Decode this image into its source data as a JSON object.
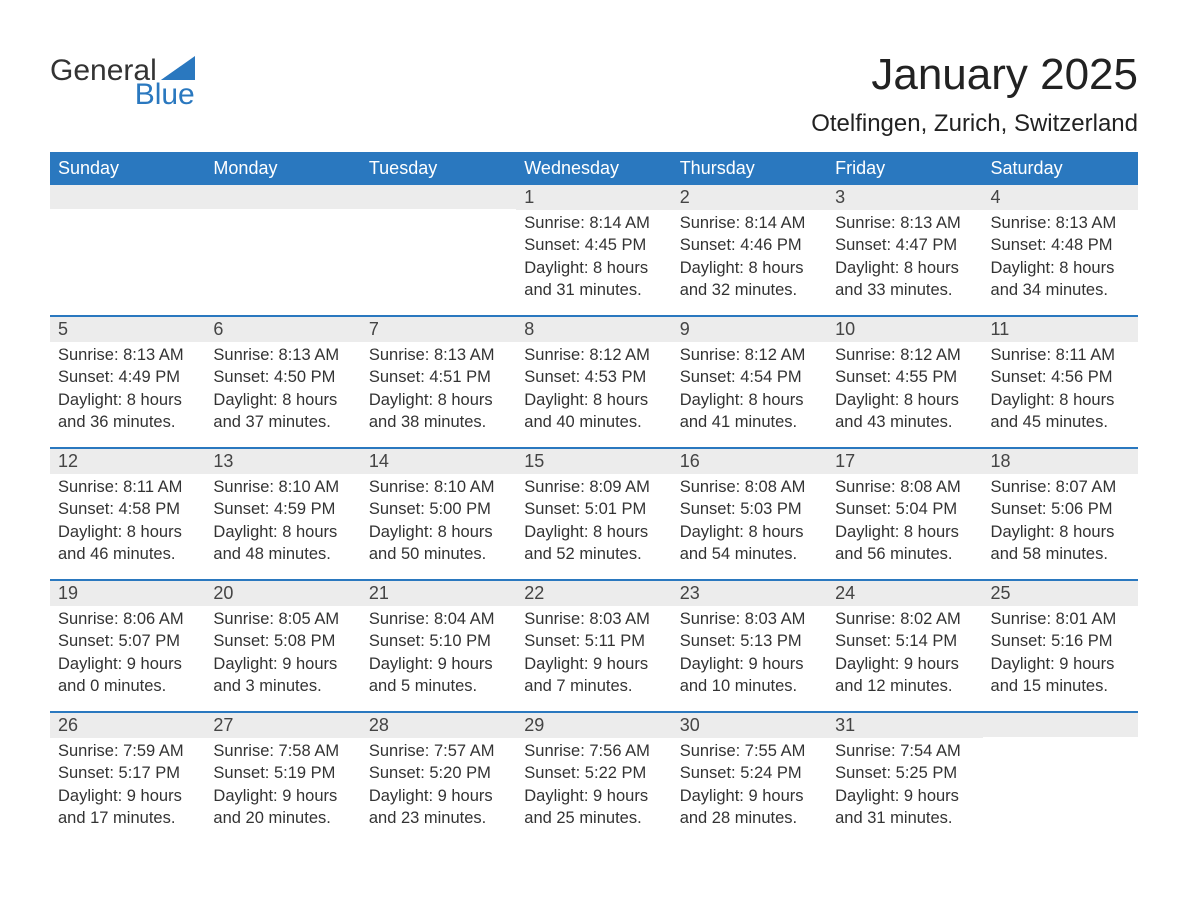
{
  "logo": {
    "general": "General",
    "blue": "Blue",
    "shape_color": "#2a78bf"
  },
  "title": "January 2025",
  "location": "Otelfingen, Zurich, Switzerland",
  "colors": {
    "header_bg": "#2a78bf",
    "header_text": "#ffffff",
    "date_row_bg": "#ececec",
    "week_border": "#2a78bf",
    "body_text": "#333333",
    "background": "#ffffff"
  },
  "day_names": [
    "Sunday",
    "Monday",
    "Tuesday",
    "Wednesday",
    "Thursday",
    "Friday",
    "Saturday"
  ],
  "weeks": [
    [
      {
        "date": "",
        "sunrise": "",
        "sunset": "",
        "daylight1": "",
        "daylight2": ""
      },
      {
        "date": "",
        "sunrise": "",
        "sunset": "",
        "daylight1": "",
        "daylight2": ""
      },
      {
        "date": "",
        "sunrise": "",
        "sunset": "",
        "daylight1": "",
        "daylight2": ""
      },
      {
        "date": "1",
        "sunrise": "Sunrise: 8:14 AM",
        "sunset": "Sunset: 4:45 PM",
        "daylight1": "Daylight: 8 hours",
        "daylight2": "and 31 minutes."
      },
      {
        "date": "2",
        "sunrise": "Sunrise: 8:14 AM",
        "sunset": "Sunset: 4:46 PM",
        "daylight1": "Daylight: 8 hours",
        "daylight2": "and 32 minutes."
      },
      {
        "date": "3",
        "sunrise": "Sunrise: 8:13 AM",
        "sunset": "Sunset: 4:47 PM",
        "daylight1": "Daylight: 8 hours",
        "daylight2": "and 33 minutes."
      },
      {
        "date": "4",
        "sunrise": "Sunrise: 8:13 AM",
        "sunset": "Sunset: 4:48 PM",
        "daylight1": "Daylight: 8 hours",
        "daylight2": "and 34 minutes."
      }
    ],
    [
      {
        "date": "5",
        "sunrise": "Sunrise: 8:13 AM",
        "sunset": "Sunset: 4:49 PM",
        "daylight1": "Daylight: 8 hours",
        "daylight2": "and 36 minutes."
      },
      {
        "date": "6",
        "sunrise": "Sunrise: 8:13 AM",
        "sunset": "Sunset: 4:50 PM",
        "daylight1": "Daylight: 8 hours",
        "daylight2": "and 37 minutes."
      },
      {
        "date": "7",
        "sunrise": "Sunrise: 8:13 AM",
        "sunset": "Sunset: 4:51 PM",
        "daylight1": "Daylight: 8 hours",
        "daylight2": "and 38 minutes."
      },
      {
        "date": "8",
        "sunrise": "Sunrise: 8:12 AM",
        "sunset": "Sunset: 4:53 PM",
        "daylight1": "Daylight: 8 hours",
        "daylight2": "and 40 minutes."
      },
      {
        "date": "9",
        "sunrise": "Sunrise: 8:12 AM",
        "sunset": "Sunset: 4:54 PM",
        "daylight1": "Daylight: 8 hours",
        "daylight2": "and 41 minutes."
      },
      {
        "date": "10",
        "sunrise": "Sunrise: 8:12 AM",
        "sunset": "Sunset: 4:55 PM",
        "daylight1": "Daylight: 8 hours",
        "daylight2": "and 43 minutes."
      },
      {
        "date": "11",
        "sunrise": "Sunrise: 8:11 AM",
        "sunset": "Sunset: 4:56 PM",
        "daylight1": "Daylight: 8 hours",
        "daylight2": "and 45 minutes."
      }
    ],
    [
      {
        "date": "12",
        "sunrise": "Sunrise: 8:11 AM",
        "sunset": "Sunset: 4:58 PM",
        "daylight1": "Daylight: 8 hours",
        "daylight2": "and 46 minutes."
      },
      {
        "date": "13",
        "sunrise": "Sunrise: 8:10 AM",
        "sunset": "Sunset: 4:59 PM",
        "daylight1": "Daylight: 8 hours",
        "daylight2": "and 48 minutes."
      },
      {
        "date": "14",
        "sunrise": "Sunrise: 8:10 AM",
        "sunset": "Sunset: 5:00 PM",
        "daylight1": "Daylight: 8 hours",
        "daylight2": "and 50 minutes."
      },
      {
        "date": "15",
        "sunrise": "Sunrise: 8:09 AM",
        "sunset": "Sunset: 5:01 PM",
        "daylight1": "Daylight: 8 hours",
        "daylight2": "and 52 minutes."
      },
      {
        "date": "16",
        "sunrise": "Sunrise: 8:08 AM",
        "sunset": "Sunset: 5:03 PM",
        "daylight1": "Daylight: 8 hours",
        "daylight2": "and 54 minutes."
      },
      {
        "date": "17",
        "sunrise": "Sunrise: 8:08 AM",
        "sunset": "Sunset: 5:04 PM",
        "daylight1": "Daylight: 8 hours",
        "daylight2": "and 56 minutes."
      },
      {
        "date": "18",
        "sunrise": "Sunrise: 8:07 AM",
        "sunset": "Sunset: 5:06 PM",
        "daylight1": "Daylight: 8 hours",
        "daylight2": "and 58 minutes."
      }
    ],
    [
      {
        "date": "19",
        "sunrise": "Sunrise: 8:06 AM",
        "sunset": "Sunset: 5:07 PM",
        "daylight1": "Daylight: 9 hours",
        "daylight2": "and 0 minutes."
      },
      {
        "date": "20",
        "sunrise": "Sunrise: 8:05 AM",
        "sunset": "Sunset: 5:08 PM",
        "daylight1": "Daylight: 9 hours",
        "daylight2": "and 3 minutes."
      },
      {
        "date": "21",
        "sunrise": "Sunrise: 8:04 AM",
        "sunset": "Sunset: 5:10 PM",
        "daylight1": "Daylight: 9 hours",
        "daylight2": "and 5 minutes."
      },
      {
        "date": "22",
        "sunrise": "Sunrise: 8:03 AM",
        "sunset": "Sunset: 5:11 PM",
        "daylight1": "Daylight: 9 hours",
        "daylight2": "and 7 minutes."
      },
      {
        "date": "23",
        "sunrise": "Sunrise: 8:03 AM",
        "sunset": "Sunset: 5:13 PM",
        "daylight1": "Daylight: 9 hours",
        "daylight2": "and 10 minutes."
      },
      {
        "date": "24",
        "sunrise": "Sunrise: 8:02 AM",
        "sunset": "Sunset: 5:14 PM",
        "daylight1": "Daylight: 9 hours",
        "daylight2": "and 12 minutes."
      },
      {
        "date": "25",
        "sunrise": "Sunrise: 8:01 AM",
        "sunset": "Sunset: 5:16 PM",
        "daylight1": "Daylight: 9 hours",
        "daylight2": "and 15 minutes."
      }
    ],
    [
      {
        "date": "26",
        "sunrise": "Sunrise: 7:59 AM",
        "sunset": "Sunset: 5:17 PM",
        "daylight1": "Daylight: 9 hours",
        "daylight2": "and 17 minutes."
      },
      {
        "date": "27",
        "sunrise": "Sunrise: 7:58 AM",
        "sunset": "Sunset: 5:19 PM",
        "daylight1": "Daylight: 9 hours",
        "daylight2": "and 20 minutes."
      },
      {
        "date": "28",
        "sunrise": "Sunrise: 7:57 AM",
        "sunset": "Sunset: 5:20 PM",
        "daylight1": "Daylight: 9 hours",
        "daylight2": "and 23 minutes."
      },
      {
        "date": "29",
        "sunrise": "Sunrise: 7:56 AM",
        "sunset": "Sunset: 5:22 PM",
        "daylight1": "Daylight: 9 hours",
        "daylight2": "and 25 minutes."
      },
      {
        "date": "30",
        "sunrise": "Sunrise: 7:55 AM",
        "sunset": "Sunset: 5:24 PM",
        "daylight1": "Daylight: 9 hours",
        "daylight2": "and 28 minutes."
      },
      {
        "date": "31",
        "sunrise": "Sunrise: 7:54 AM",
        "sunset": "Sunset: 5:25 PM",
        "daylight1": "Daylight: 9 hours",
        "daylight2": "and 31 minutes."
      },
      {
        "date": "",
        "sunrise": "",
        "sunset": "",
        "daylight1": "",
        "daylight2": ""
      }
    ]
  ]
}
